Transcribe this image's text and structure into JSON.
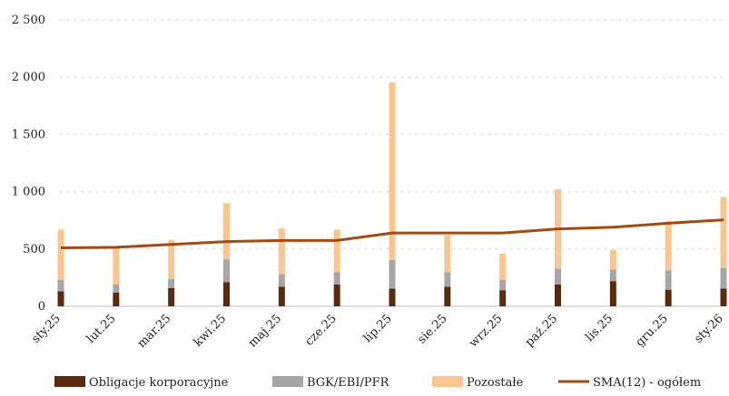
{
  "chart_data": {
    "type": "bar",
    "stacked": true,
    "categories": [
      "sty.25",
      "lut.25",
      "mar.25",
      "kwi.25",
      "maj.25",
      "cze.25",
      "lip.25",
      "sie.25",
      "wrz.25",
      "paź.25",
      "lis.25",
      "gru.25",
      "sty.26"
    ],
    "series": [
      {
        "name": "Obligacje korporacyjne",
        "color": "#5b2a0e",
        "values": [
          130,
          120,
          160,
          210,
          170,
          190,
          155,
          170,
          140,
          190,
          220,
          145,
          155
        ]
      },
      {
        "name": "BGK/EBI/PFR",
        "color": "#a6a6a6",
        "values": [
          100,
          70,
          80,
          200,
          110,
          110,
          250,
          130,
          90,
          140,
          100,
          170,
          180
        ]
      },
      {
        "name": "Pozostałe",
        "color": "#fac58f",
        "values": [
          440,
          320,
          340,
          490,
          400,
          370,
          1550,
          320,
          230,
          690,
          170,
          430,
          620
        ]
      }
    ],
    "line_series": {
      "name": "SMA(12) - ogółem",
      "color": "#a24a14",
      "values": [
        510,
        515,
        540,
        565,
        575,
        575,
        640,
        640,
        640,
        675,
        690,
        725,
        755
      ]
    },
    "ylim": [
      0,
      2500
    ],
    "yticks": [
      0,
      500,
      1000,
      1500,
      2000,
      2500
    ],
    "ytick_labels": [
      "0",
      "500",
      "1 000",
      "1 500",
      "2 000",
      "2 500"
    ],
    "grid": true,
    "legend_position": "bottom"
  }
}
